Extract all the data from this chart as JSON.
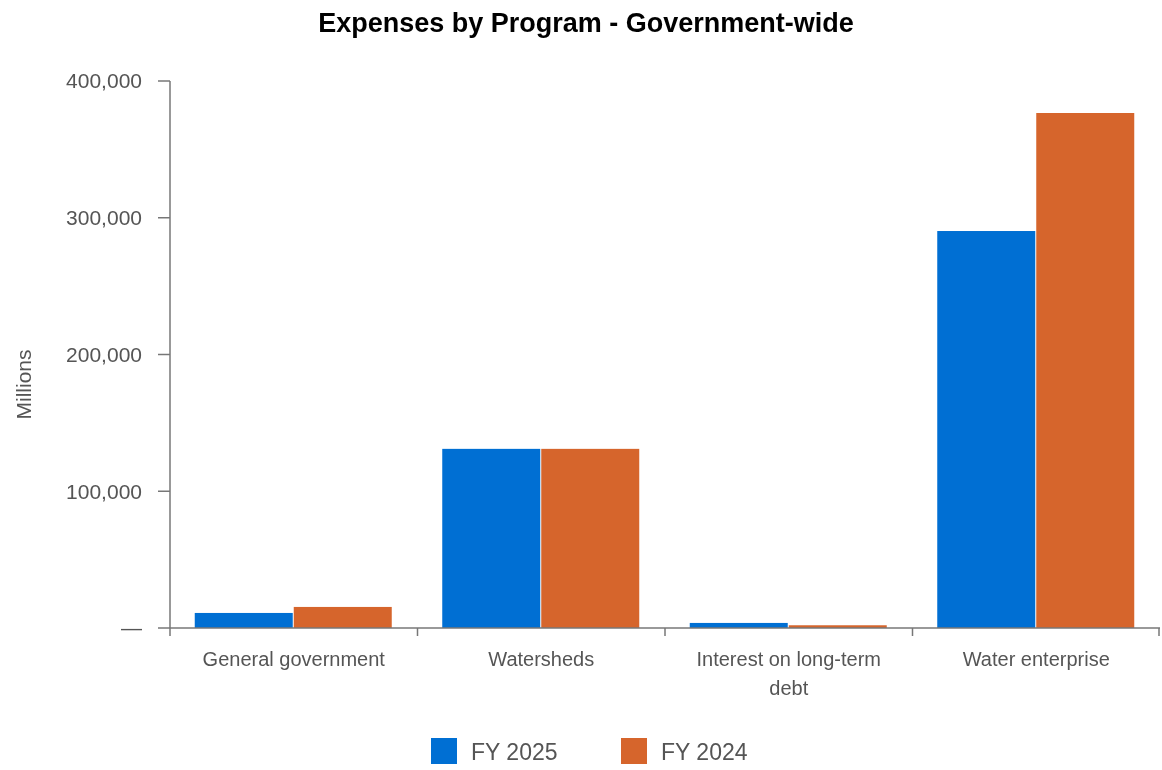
{
  "chart_data": {
    "type": "bar",
    "title": "Expenses by Program - Government-wide",
    "ylabel": "Millions",
    "categories": [
      "General government",
      "Watersheds",
      "Interest on long-term debt",
      "Water enterprise"
    ],
    "series": [
      {
        "name": "FY 2025",
        "color": "#006fd3",
        "values": [
          11000,
          131000,
          3700,
          290300
        ]
      },
      {
        "name": "FY 2024",
        "color": "#d6652c",
        "values": [
          15400,
          131000,
          2000,
          376600
        ]
      }
    ],
    "ylim": [
      0,
      400000
    ],
    "yticks": [
      {
        "value": 0,
        "label": "—"
      },
      {
        "value": 100000,
        "label": "100,000"
      },
      {
        "value": 200000,
        "label": "200,000"
      },
      {
        "value": 300000,
        "label": "300,000"
      },
      {
        "value": 400000,
        "label": "400,000"
      }
    ],
    "legend": "bottom"
  }
}
